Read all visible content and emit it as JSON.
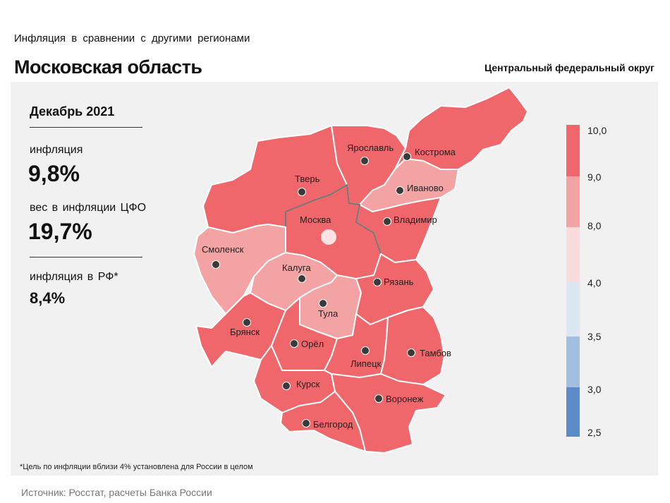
{
  "header": {
    "subtitle": "Инфляция в сравнении с другими регионами",
    "title": "Московская область",
    "district": "Центральный федеральный округ"
  },
  "stats": {
    "period": "Декабрь 2021",
    "inflation_label": "инфляция",
    "inflation_value": "9,8%",
    "weight_label": "вес в инфляции ЦФО",
    "weight_value": "19,7%",
    "rf_label": "инфляция в РФ*",
    "rf_value": "8,4%"
  },
  "footnote": "*Цель по инфляции вблизи 4% установлена для России в целом",
  "source": "Источник: Росстат, расчеты Банка России",
  "legend": {
    "ticks": [
      "10,0",
      "9,0",
      "8,0",
      "4,0",
      "3,5",
      "3,0",
      "2,5"
    ],
    "colors": [
      "#f0676b",
      "#f4a3a5",
      "#fadcdc",
      "#dde6f3",
      "#a3bfe0",
      "#5b8cc7"
    ]
  },
  "regions": [
    {
      "name": "Москва",
      "color": "#f0676b"
    },
    {
      "name": "Тверь",
      "color": "#f0676b"
    },
    {
      "name": "Ярославль",
      "color": "#f0676b"
    },
    {
      "name": "Кострома",
      "color": "#f4a3a5"
    },
    {
      "name": "Иваново",
      "color": "#f0676b"
    },
    {
      "name": "Владимир",
      "color": "#f0676b"
    },
    {
      "name": "Смоленск",
      "color": "#f4a3a5"
    },
    {
      "name": "Калуга",
      "color": "#f4a3a5"
    },
    {
      "name": "Тула",
      "color": "#f4a3a5"
    },
    {
      "name": "Рязань",
      "color": "#f0676b"
    },
    {
      "name": "Брянск",
      "color": "#f0676b"
    },
    {
      "name": "Орёл",
      "color": "#f0676b"
    },
    {
      "name": "Липецк",
      "color": "#f0676b"
    },
    {
      "name": "Тамбов",
      "color": "#f0676b"
    },
    {
      "name": "Курск",
      "color": "#f0676b"
    },
    {
      "name": "Воронеж",
      "color": "#f0676b"
    },
    {
      "name": "Белгород",
      "color": "#f0676b"
    }
  ]
}
